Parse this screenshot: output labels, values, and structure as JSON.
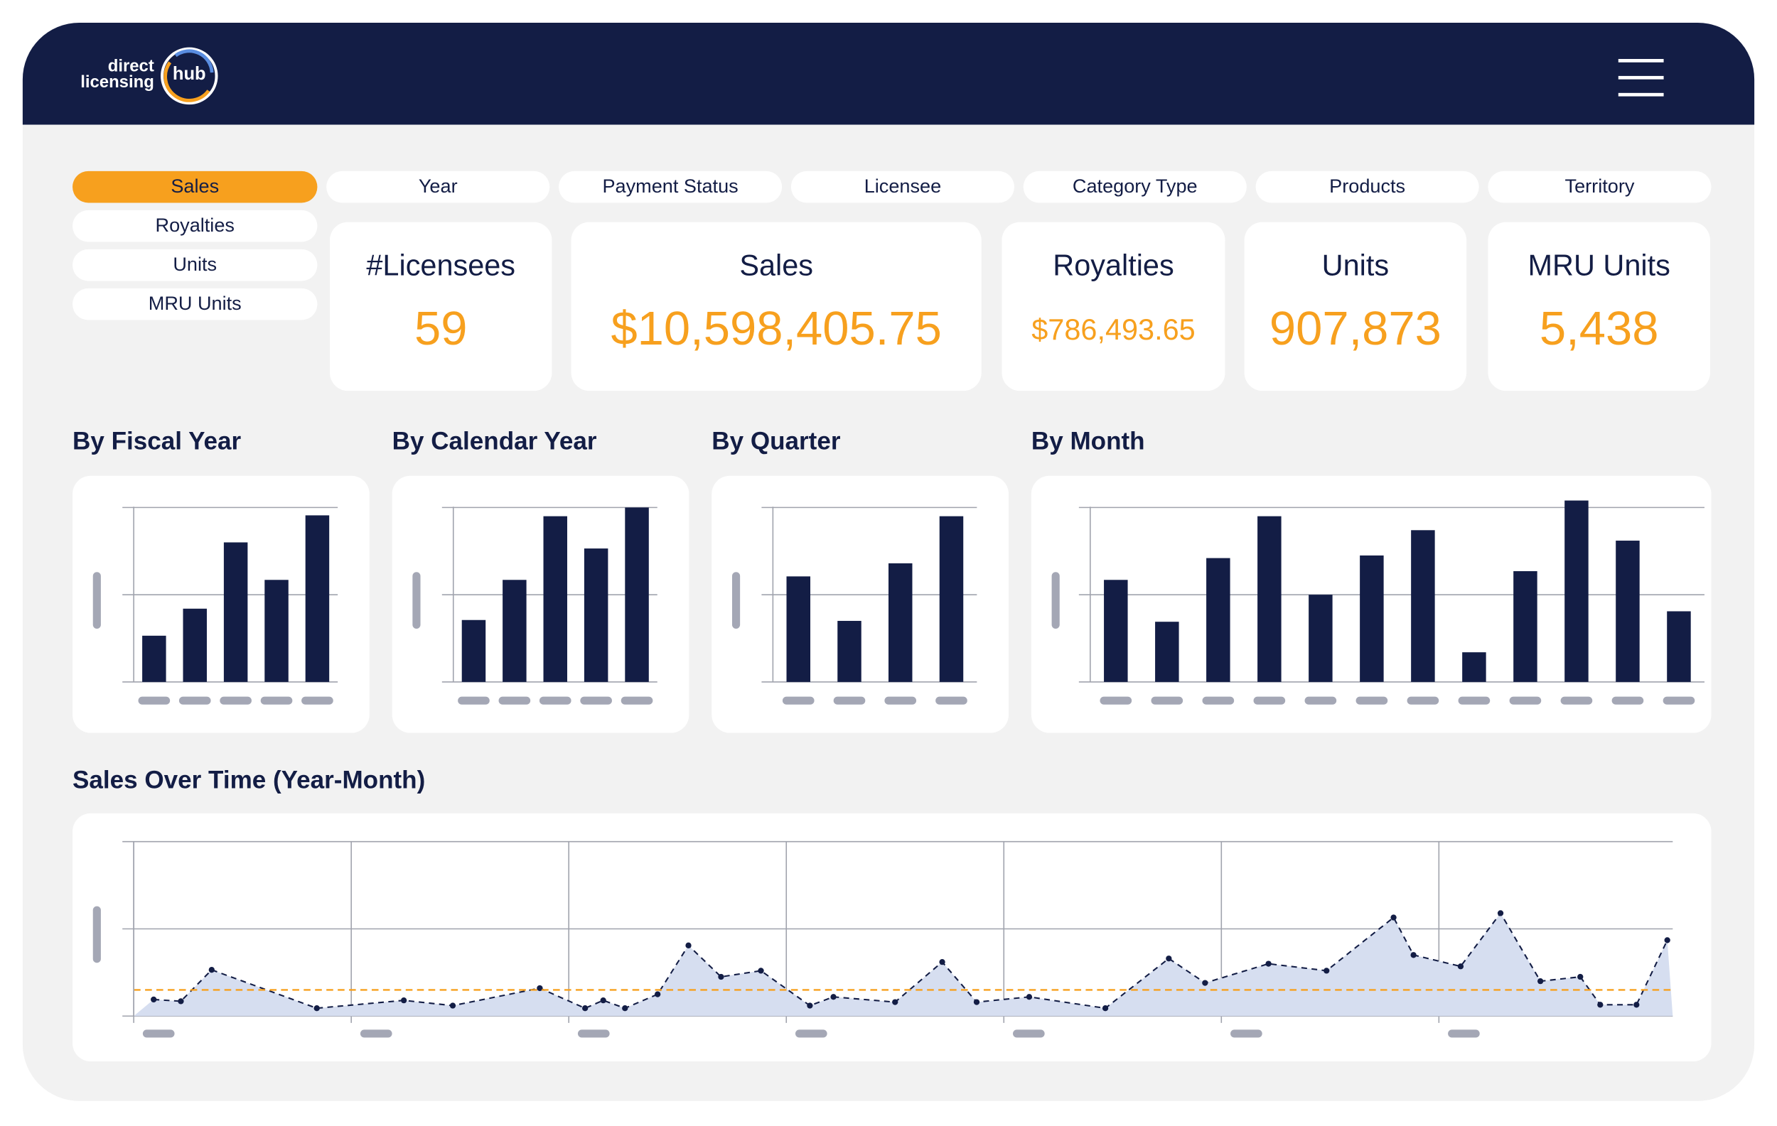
{
  "header": {
    "logo": [
      "direct",
      "licensing",
      "hub"
    ]
  },
  "tabs": [
    "Sales",
    "Royalties",
    "Units",
    "MRU Units"
  ],
  "active_tab": "Sales",
  "filters": [
    "Year",
    "Payment Status",
    "Licensee",
    "Category Type",
    "Products",
    "Territory"
  ],
  "kpis": [
    {
      "label": "#Licensees",
      "value": "59"
    },
    {
      "label": "Sales",
      "value": "$10,598,405.75"
    },
    {
      "label": "Royalties",
      "value": "$786,493.65"
    },
    {
      "label": "Units",
      "value": "907,873"
    },
    {
      "label": "MRU Units",
      "value": "5,438"
    }
  ],
  "chart_data": [
    {
      "type": "bar",
      "title": "By Fiscal Year",
      "values": [
        0.53,
        0.84,
        1.6,
        1.17,
        1.91
      ],
      "color": "#131d45",
      "ylim": [
        0,
        2.1
      ],
      "yticks": [
        0,
        1,
        2
      ],
      "grid": true
    },
    {
      "type": "bar",
      "title": "By Calendar Year",
      "values": [
        0.71,
        1.17,
        1.9,
        1.53,
        2.0
      ],
      "color": "#131d45",
      "ylim": [
        0,
        2.1
      ],
      "yticks": [
        0,
        1,
        2
      ],
      "grid": true
    },
    {
      "type": "bar",
      "title": "By Quarter",
      "values": [
        1.21,
        0.7,
        1.36,
        1.9
      ],
      "color": "#131d45",
      "ylim": [
        0,
        2.1
      ],
      "yticks": [
        0,
        1,
        2
      ],
      "grid": true
    },
    {
      "type": "bar",
      "title": "By Month",
      "values": [
        1.17,
        0.69,
        1.42,
        1.9,
        1.0,
        1.45,
        1.74,
        0.34,
        1.27,
        2.08,
        1.62,
        0.81
      ],
      "color": "#131d45",
      "ylim": [
        0,
        2.1
      ],
      "yticks": [
        0,
        1,
        2
      ],
      "grid": true
    },
    {
      "type": "area",
      "title": "Sales Over Time (Year-Month)",
      "x": [
        1.1,
        2.6,
        4.3,
        10.1,
        14.9,
        17.6,
        22.4,
        24.9,
        25.9,
        27.1,
        28.9,
        30.6,
        32.4,
        34.6,
        37.3,
        38.6,
        42.0,
        44.6,
        46.5,
        49.4,
        53.6,
        57.1,
        59.1,
        62.6,
        65.8,
        69.5,
        70.6,
        73.2,
        75.4,
        77.6,
        79.8,
        80.9,
        82.9,
        84.6
      ],
      "series": [
        {
          "color": "#131d45",
          "fill": "#d6def0",
          "values": [
            0.19,
            0.17,
            0.53,
            0.09,
            0.18,
            0.12,
            0.32,
            0.09,
            0.18,
            0.09,
            0.25,
            0.81,
            0.45,
            0.52,
            0.12,
            0.22,
            0.16,
            0.62,
            0.16,
            0.22,
            0.09,
            0.66,
            0.38,
            0.6,
            0.52,
            1.13,
            0.7,
            0.57,
            1.18,
            0.4,
            0.45,
            0.13,
            0.13,
            0.87
          ]
        }
      ],
      "reference": {
        "value": 0.3,
        "color": "#f7a01e"
      },
      "xlim": [
        0,
        84.9
      ],
      "xticks": [
        0,
        12,
        24,
        36,
        48,
        60,
        72
      ],
      "ylim": [
        0,
        2
      ],
      "yticks": [
        0,
        1,
        2
      ],
      "grid": true
    }
  ]
}
